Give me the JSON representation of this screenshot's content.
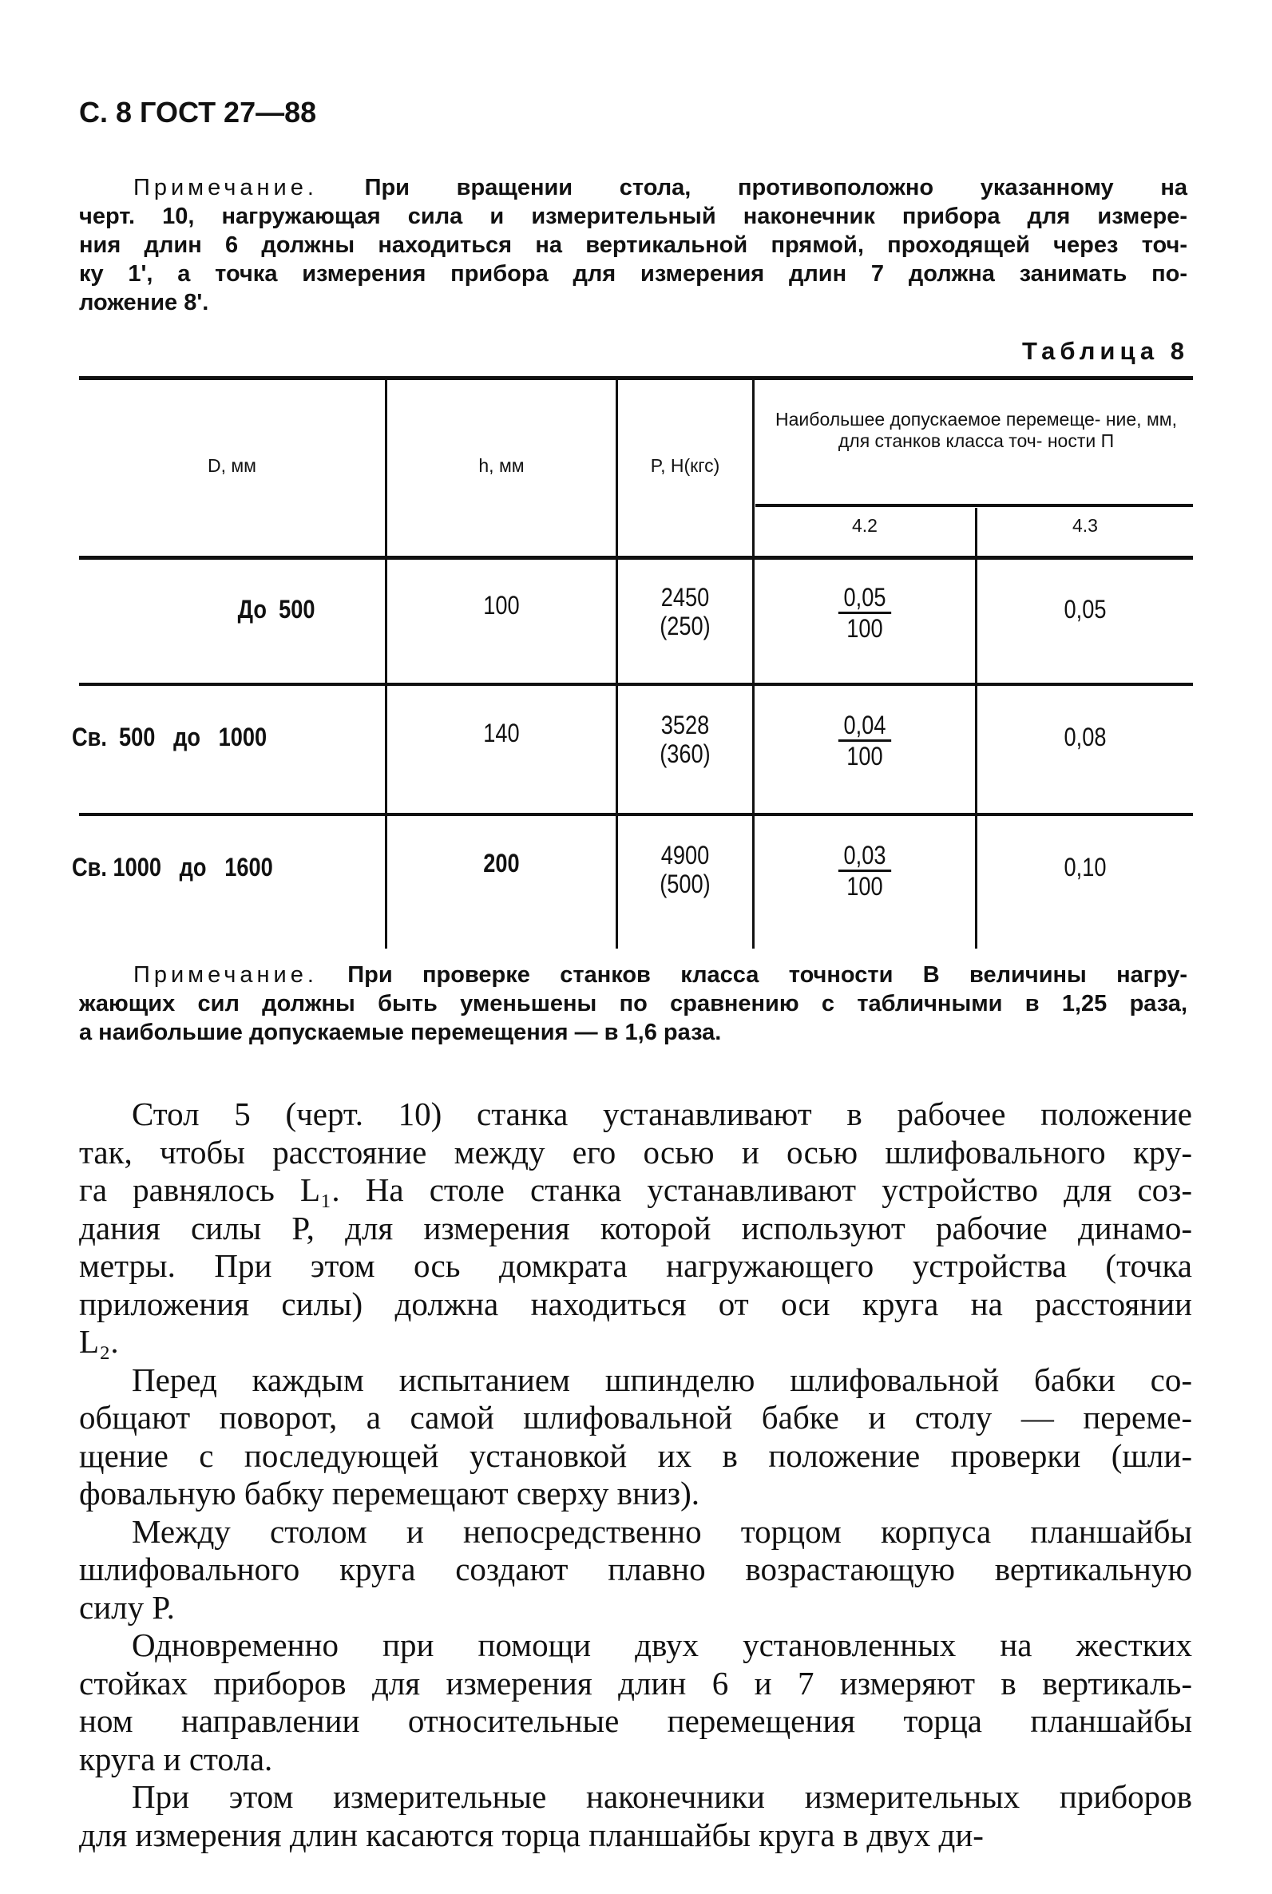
{
  "header": {
    "page_ref": "С. 8 ГОСТ 27—88"
  },
  "note1": {
    "label": "Примечание.",
    "lines": [
      "При вращении стола, противоположно указанному на",
      "черт. 10, нагружающая сила и измерительный наконечник прибора для измере-",
      "ния длин 6 должны находиться на вертикальной прямой, проходящей через точ-",
      "ку 1', а точка измерения прибора для измерения длин 7 должна занимать по-",
      "ложение 8'."
    ]
  },
  "table": {
    "caption": "Таблица 8",
    "headers": {
      "d": "D, мм",
      "h": "h, мм",
      "p": "P, Н(кгс)",
      "group": "Наибольшее допускаемое перемеще- ние, мм, для станков класса точ- ности П",
      "sub1": "4.2",
      "sub2": "4.3"
    },
    "rows": [
      {
        "d": "До  500",
        "h": "100",
        "p1": "2450",
        "p2": "(250)",
        "v42_num": "0,05",
        "v42_den": "100",
        "v43": "0,05"
      },
      {
        "d": "Св.  500   до   1000",
        "h": "140",
        "p1": "3528",
        "p2": "(360)",
        "v42_num": "0,04",
        "v42_den": "100",
        "v43": "0,08"
      },
      {
        "d": "Св. 1000   до   1600",
        "h": "200",
        "p1": "4900",
        "p2": "(500)",
        "v42_num": "0,03",
        "v42_den": "100",
        "v43": "0,10"
      }
    ]
  },
  "note2": {
    "label": "Примечание.",
    "lines": [
      "При проверке станков класса точности В величины нагру-",
      "жающих сил должны быть уменьшены по сравнению с табличными в 1,25 раза,",
      "а наибольшие допускаемые перемещения — в 1,6 раза."
    ]
  },
  "body": {
    "paragraphs": [
      [
        "Стол 5 (черт. 10) станка устанавливают в рабочее положение",
        "так, чтобы расстояние между его осью и осью шлифовального кру-",
        "га равнялось L₁. На столе станка устанавливают устройство для соз-",
        "дания силы P, для измерения которой используют рабочие динамо-",
        "метры. При этом ось домкрата нагружающего устройства (точка",
        "приложения силы) должна находиться от оси круга на расстоянии",
        "L₂."
      ],
      [
        "Перед каждым испытанием шпинделю шлифовальной бабки со-",
        "общают поворот, а самой шлифовальной бабке и столу — переме-",
        "щение с последующей установкой их в положение проверки (шли-",
        "фовальную бабку перемещают сверху вниз)."
      ],
      [
        "Между столом и непосредственно торцом корпуса планшайбы",
        "шлифовального круга создают плавно возрастающую вертикальную",
        "силу P."
      ],
      [
        "Одновременно при помощи двух установленных на жестких",
        "стойках приборов для измерения длин 6 и 7 измеряют в вертикаль-",
        "ном направлении относительные перемещения торца планшайбы",
        "круга и стола."
      ],
      [
        "При этом измерительные наконечники измерительных приборов",
        "для измерения длин касаются торца планшайбы круга в двух ди-"
      ]
    ]
  }
}
